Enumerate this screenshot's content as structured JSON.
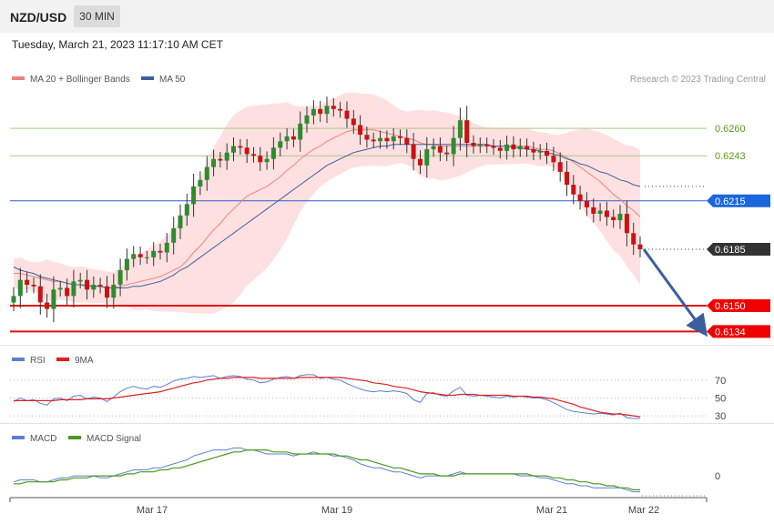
{
  "header": {
    "symbol": "NZD/USD",
    "timeframe": "30 MIN"
  },
  "datetime": "Tuesday, March 21, 2023 11:17:10 AM CET",
  "credit": "Research © 2023 Trading Central",
  "colors": {
    "ma20": "#f08080",
    "bands": "#ffd6d6",
    "ma50": "#3a5f9e",
    "bull": "#2e8b2e",
    "bear": "#cc1111",
    "rsi": "#5b7fd6",
    "rsi_ma": "#e02020",
    "macd": "#5b7fd6",
    "macd_signal": "#4a9a1a"
  },
  "chart_data": [
    {
      "type": "candlestick",
      "legend": [
        {
          "name": "MA 20 + Bollinger Bands",
          "color": "#f08080"
        },
        {
          "name": "MA 50",
          "color": "#3a5f9e"
        }
      ],
      "ylim": [
        0.6128,
        0.6286
      ],
      "x_labels": [
        "Mar 17",
        "Mar 19",
        "Mar 21",
        "Mar 22"
      ],
      "levels": [
        {
          "value": 0.626,
          "label": "0.6260",
          "kind": "resistance"
        },
        {
          "value": 0.6243,
          "label": "0.6243",
          "kind": "resistance"
        },
        {
          "value": 0.6215,
          "label": "0.6215",
          "kind": "pivot"
        },
        {
          "value": 0.6185,
          "label": "0.6185",
          "kind": "last"
        },
        {
          "value": 0.615,
          "label": "0.6150",
          "kind": "support"
        },
        {
          "value": 0.6134,
          "label": "0.6134",
          "kind": "support"
        }
      ],
      "close": [
        0.6156,
        0.6166,
        0.6163,
        0.6162,
        0.6152,
        0.6148,
        0.616,
        0.6161,
        0.6156,
        0.6165,
        0.6166,
        0.616,
        0.6163,
        0.6162,
        0.6155,
        0.6163,
        0.6172,
        0.6179,
        0.6182,
        0.618,
        0.618,
        0.6184,
        0.6183,
        0.6189,
        0.6198,
        0.6206,
        0.6213,
        0.6224,
        0.6228,
        0.6236,
        0.6241,
        0.624,
        0.6245,
        0.6249,
        0.6248,
        0.6244,
        0.6243,
        0.6239,
        0.6241,
        0.6248,
        0.6252,
        0.6255,
        0.6253,
        0.6263,
        0.6268,
        0.6272,
        0.6269,
        0.6274,
        0.6272,
        0.6271,
        0.6266,
        0.6262,
        0.6256,
        0.6253,
        0.6252,
        0.6254,
        0.6252,
        0.6255,
        0.6254,
        0.625,
        0.6241,
        0.6237,
        0.6247,
        0.6249,
        0.6245,
        0.6244,
        0.6254,
        0.6265,
        0.6251,
        0.6249,
        0.625,
        0.6249,
        0.6248,
        0.6246,
        0.625,
        0.6247,
        0.6249,
        0.6247,
        0.6245,
        0.6246,
        0.6243,
        0.6239,
        0.6233,
        0.6225,
        0.6219,
        0.6215,
        0.6211,
        0.6207,
        0.6209,
        0.6205,
        0.6203,
        0.6207,
        0.6195,
        0.6188,
        0.6185
      ],
      "ma20": [
        0.617,
        0.617,
        0.6169,
        0.6168,
        0.6167,
        0.6166,
        0.6165,
        0.6165,
        0.6164,
        0.6163,
        0.6163,
        0.6163,
        0.6162,
        0.6162,
        0.6161,
        0.6161,
        0.6162,
        0.6163,
        0.6164,
        0.6165,
        0.6166,
        0.6167,
        0.6168,
        0.617,
        0.6172,
        0.6174,
        0.6178,
        0.6183,
        0.6187,
        0.6192,
        0.6197,
        0.6201,
        0.6206,
        0.621,
        0.6214,
        0.6218,
        0.622,
        0.6222,
        0.6224,
        0.6227,
        0.623,
        0.6234,
        0.6237,
        0.6241,
        0.6244,
        0.6247,
        0.6249,
        0.6252,
        0.6254,
        0.6256,
        0.6258,
        0.6259,
        0.6259,
        0.6259,
        0.6259,
        0.6258,
        0.6257,
        0.6256,
        0.6255,
        0.6254,
        0.6253,
        0.6251,
        0.625,
        0.625,
        0.6249,
        0.6249,
        0.6249,
        0.6249,
        0.6249,
        0.6249,
        0.6249,
        0.6249,
        0.6249,
        0.6249,
        0.6249,
        0.6249,
        0.6249,
        0.6249,
        0.6248,
        0.6247,
        0.6247,
        0.6246,
        0.6244,
        0.6242,
        0.6239,
        0.6236,
        0.6233,
        0.623,
        0.6227,
        0.6223,
        0.6219,
        0.6216,
        0.6212,
        0.6209,
        0.6205
      ],
      "ma50": [
        0.6174,
        0.6172,
        0.6171,
        0.617,
        0.6168,
        0.6167,
        0.6166,
        0.6165,
        0.6164,
        0.6163,
        0.6163,
        0.6162,
        0.6162,
        0.6162,
        0.6161,
        0.6161,
        0.6161,
        0.6161,
        0.6162,
        0.6162,
        0.6163,
        0.6164,
        0.6165,
        0.6167,
        0.6169,
        0.6172,
        0.6174,
        0.6177,
        0.618,
        0.6183,
        0.6186,
        0.6189,
        0.6192,
        0.6195,
        0.6198,
        0.6201,
        0.6204,
        0.6207,
        0.621,
        0.6213,
        0.6216,
        0.6219,
        0.6222,
        0.6225,
        0.6228,
        0.6231,
        0.6234,
        0.6237,
        0.6239,
        0.6241,
        0.6243,
        0.6245,
        0.6246,
        0.6247,
        0.6248,
        0.6249,
        0.6249,
        0.625,
        0.625,
        0.625,
        0.625,
        0.625,
        0.625,
        0.625,
        0.625,
        0.625,
        0.625,
        0.625,
        0.625,
        0.625,
        0.625,
        0.625,
        0.6249,
        0.6249,
        0.6249,
        0.6248,
        0.6248,
        0.6247,
        0.6247,
        0.6246,
        0.6245,
        0.6244,
        0.6243,
        0.6241,
        0.624,
        0.6238,
        0.6237,
        0.6235,
        0.6233,
        0.6232,
        0.623,
        0.6228,
        0.6227,
        0.6225,
        0.6224
      ],
      "projection": {
        "from": 0.6185,
        "to": 0.6134
      }
    },
    {
      "type": "line",
      "legend": [
        {
          "name": "RSI",
          "color": "#5b7fd6"
        },
        {
          "name": "9MA",
          "color": "#e02020"
        }
      ],
      "ylim": [
        25,
        80
      ],
      "y_ticks": [
        70,
        50,
        30
      ],
      "series": [
        {
          "name": "RSI",
          "values": [
            46,
            50,
            47,
            48,
            44,
            42,
            49,
            50,
            47,
            52,
            53,
            49,
            51,
            50,
            46,
            51,
            57,
            61,
            63,
            61,
            60,
            63,
            62,
            65,
            69,
            71,
            72,
            74,
            73,
            74,
            75,
            72,
            74,
            75,
            74,
            71,
            70,
            67,
            68,
            71,
            73,
            74,
            72,
            75,
            76,
            76,
            72,
            73,
            71,
            70,
            66,
            63,
            60,
            58,
            57,
            58,
            57,
            58,
            57,
            55,
            48,
            45,
            55,
            56,
            53,
            52,
            58,
            62,
            53,
            52,
            53,
            52,
            51,
            50,
            52,
            51,
            52,
            51,
            50,
            50,
            48,
            45,
            41,
            37,
            35,
            34,
            33,
            32,
            33,
            32,
            31,
            33,
            28,
            27,
            27
          ]
        },
        {
          "name": "9MA",
          "values": [
            47,
            47,
            47,
            47,
            47,
            47,
            47,
            48,
            48,
            48,
            48,
            49,
            49,
            49,
            49,
            50,
            51,
            52,
            53,
            54,
            55,
            56,
            57,
            59,
            61,
            63,
            65,
            67,
            68,
            70,
            71,
            72,
            72,
            73,
            73,
            73,
            73,
            72,
            72,
            72,
            72,
            72,
            72,
            73,
            73,
            73,
            73,
            73,
            73,
            73,
            72,
            71,
            70,
            69,
            67,
            66,
            65,
            63,
            62,
            61,
            59,
            57,
            56,
            55,
            54,
            53,
            53,
            54,
            54,
            54,
            53,
            53,
            53,
            53,
            53,
            52,
            52,
            52,
            51,
            51,
            50,
            49,
            47,
            45,
            43,
            40,
            38,
            36,
            34,
            33,
            32,
            32,
            31,
            30,
            29
          ]
        }
      ]
    },
    {
      "type": "line",
      "legend": [
        {
          "name": "MACD",
          "color": "#5b7fd6"
        },
        {
          "name": "MACD Signal",
          "color": "#4a9a1a"
        }
      ],
      "ylim": [
        -0.001,
        0.0016
      ],
      "y_ticks": [
        0
      ],
      "series": [
        {
          "name": "MACD",
          "values": [
            -0.0003,
            -0.0002,
            -0.0002,
            -0.0002,
            -0.0003,
            -0.0003,
            -0.0002,
            -0.0001,
            -0.0001,
            0.0,
            0.0,
            0.0,
            0.0,
            -0.0001,
            -0.0001,
            0.0,
            0.0001,
            0.0002,
            0.0003,
            0.0003,
            0.0003,
            0.0004,
            0.0004,
            0.0005,
            0.0006,
            0.0007,
            0.0008,
            0.001,
            0.0011,
            0.0012,
            0.0013,
            0.0013,
            0.0013,
            0.0014,
            0.0014,
            0.0013,
            0.0013,
            0.0012,
            0.0011,
            0.0011,
            0.0011,
            0.0011,
            0.001,
            0.0011,
            0.0011,
            0.0012,
            0.0011,
            0.0011,
            0.001,
            0.001,
            0.0009,
            0.0008,
            0.0006,
            0.0005,
            0.0004,
            0.0004,
            0.0003,
            0.0002,
            0.0002,
            0.0001,
            0.0,
            -0.0001,
            0.0,
            0.0,
            0.0,
            0.0,
            0.0001,
            0.0002,
            0.0001,
            0.0001,
            0.0001,
            0.0001,
            0.0001,
            0.0001,
            0.0001,
            0.0001,
            0.0,
            0.0,
            0.0,
            -0.0001,
            -0.0001,
            -0.0002,
            -0.0003,
            -0.0004,
            -0.0004,
            -0.0005,
            -0.0005,
            -0.0006,
            -0.0006,
            -0.0006,
            -0.0006,
            -0.0006,
            -0.0007,
            -0.0008,
            -0.0008
          ]
        },
        {
          "name": "MACD Signal",
          "values": [
            -0.0004,
            -0.0004,
            -0.0003,
            -0.0003,
            -0.0003,
            -0.0003,
            -0.0003,
            -0.0002,
            -0.0002,
            -0.0001,
            -0.0001,
            -0.0001,
            0.0,
            0.0,
            0.0,
            0.0,
            0.0,
            0.0001,
            0.0001,
            0.0002,
            0.0002,
            0.0002,
            0.0003,
            0.0003,
            0.0004,
            0.0004,
            0.0005,
            0.0006,
            0.0007,
            0.0008,
            0.0009,
            0.001,
            0.0011,
            0.0012,
            0.0012,
            0.0013,
            0.0013,
            0.0013,
            0.0013,
            0.0012,
            0.0012,
            0.0012,
            0.0011,
            0.0011,
            0.0011,
            0.0011,
            0.0011,
            0.0011,
            0.0011,
            0.001,
            0.001,
            0.0009,
            0.0008,
            0.0008,
            0.0007,
            0.0006,
            0.0005,
            0.0004,
            0.0004,
            0.0003,
            0.0002,
            0.0001,
            0.0001,
            0.0001,
            0.0,
            0.0,
            0.0,
            0.0001,
            0.0001,
            0.0001,
            0.0001,
            0.0001,
            0.0001,
            0.0001,
            0.0001,
            0.0001,
            0.0001,
            0.0001,
            0.0,
            0.0,
            0.0,
            -0.0001,
            -0.0001,
            -0.0002,
            -0.0002,
            -0.0003,
            -0.0003,
            -0.0004,
            -0.0004,
            -0.0005,
            -0.0005,
            -0.0006,
            -0.0006,
            -0.0007,
            -0.0007
          ]
        }
      ]
    }
  ]
}
